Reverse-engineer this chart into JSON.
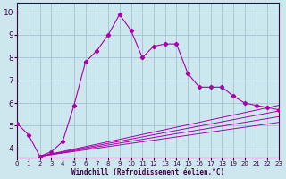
{
  "xlabel": "Windchill (Refroidissement éolien,°C)",
  "bg_color": "#cce8ee",
  "line_color": "#aa00aa",
  "grid_color": "#99bbcc",
  "x_ticks": [
    0,
    1,
    2,
    3,
    4,
    5,
    6,
    7,
    8,
    9,
    10,
    11,
    12,
    13,
    14,
    15,
    16,
    17,
    18,
    19,
    20,
    21,
    22,
    23
  ],
  "y_ticks": [
    4,
    5,
    6,
    7,
    8,
    9,
    10
  ],
  "ylim": [
    3.6,
    10.4
  ],
  "xlim": [
    0,
    23
  ],
  "series1_x": [
    0,
    1,
    2,
    3,
    4,
    5,
    6,
    7,
    8,
    9,
    10,
    11,
    12,
    13,
    14,
    15,
    16,
    17,
    18,
    19,
    20,
    21,
    22,
    23
  ],
  "series1_y": [
    5.1,
    4.6,
    3.65,
    3.85,
    4.3,
    5.9,
    7.8,
    8.3,
    9.0,
    9.9,
    9.2,
    8.0,
    8.5,
    8.6,
    8.6,
    7.3,
    6.7,
    6.7,
    6.7,
    6.3,
    6.0,
    5.9,
    5.8,
    5.7
  ],
  "series2_x": [
    2,
    23
  ],
  "series2_y": [
    3.65,
    5.9
  ],
  "series3_x": [
    2,
    23
  ],
  "series3_y": [
    3.65,
    5.65
  ],
  "series4_x": [
    2,
    23
  ],
  "series4_y": [
    3.65,
    5.4
  ],
  "series5_x": [
    2,
    23
  ],
  "series5_y": [
    3.65,
    5.15
  ],
  "spine_color": "#440044",
  "tick_color": "#440044",
  "xlabel_fontsize": 5.5,
  "ytick_fontsize": 6.5,
  "xtick_fontsize": 5.0
}
